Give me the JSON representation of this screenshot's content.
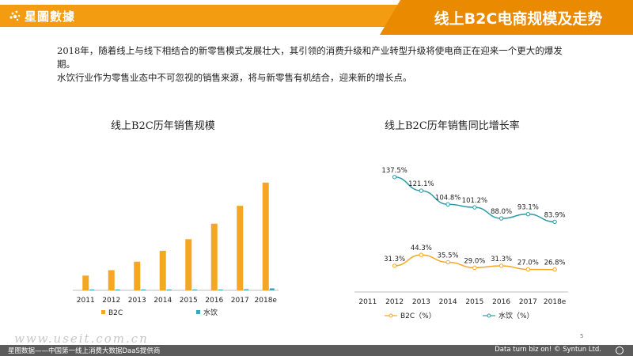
{
  "header": {
    "logo_text": "星圖數據",
    "title": "线上B2C电商规模及走势",
    "accent_color": "#f39c12",
    "title_bg_color": "#ea8a00"
  },
  "intro": {
    "line1": "2018年，随着线上与线下相结合的新零售模式发展壮大，其引领的消费升级和产业转型升级将使电商正在迎来一个更大的爆发期。",
    "line2": "水饮行业作为零售业态中不可忽视的销售来源，将与新零售有机结合，迎来新的增长点。"
  },
  "chart_data": [
    {
      "type": "bar",
      "title": "线上B2C历年销售规模",
      "categories": [
        "2011",
        "2012",
        "2013",
        "2014",
        "2015",
        "2016",
        "2017",
        "2018e"
      ],
      "series": [
        {
          "name": "B2C",
          "color": "#f5a623",
          "values": [
            19,
            26,
            37,
            51,
            66,
            86,
            109,
            139
          ]
        },
        {
          "name": "水饮",
          "color": "#3aa6b9",
          "values": [
            0.1,
            0.15,
            0.2,
            0.3,
            0.4,
            0.7,
            1.4,
            2.6
          ]
        }
      ],
      "ylim": [
        0,
        150
      ],
      "xlabel": "",
      "ylabel": ""
    },
    {
      "type": "line",
      "title": "线上B2C历年销售同比增长率",
      "categories": [
        "2011",
        "2012",
        "2013",
        "2014",
        "2015",
        "2016",
        "2017",
        "2018e"
      ],
      "series": [
        {
          "name": "B2C（%）",
          "color": "#f5a623",
          "values": [
            null,
            31.3,
            44.3,
            35.5,
            29.0,
            31.3,
            27.0,
            26.8
          ],
          "labels": [
            "",
            "31.3%",
            "44.3%",
            "35.5%",
            "29.0%",
            "31.3%",
            "27.0%",
            "26.8%"
          ]
        },
        {
          "name": "水饮（%）",
          "color": "#2e9aa8",
          "values": [
            null,
            137.5,
            121.1,
            104.8,
            101.2,
            88.0,
            93.1,
            83.9
          ],
          "labels": [
            "",
            "137.5%",
            "121.1%",
            "104.8%",
            "101.2%",
            "88.0%",
            "93.1%",
            "83.9%"
          ]
        }
      ],
      "ylim": [
        0,
        160
      ],
      "xlabel": "",
      "ylabel": ""
    }
  ],
  "watermark": "www.useit.com.cn",
  "page_number": "5",
  "footer": {
    "left_text": "星图数据——中国第一线上消费大数据DaaS提供商",
    "right_text": "Data turn biz on! © Syntun Ltd."
  }
}
